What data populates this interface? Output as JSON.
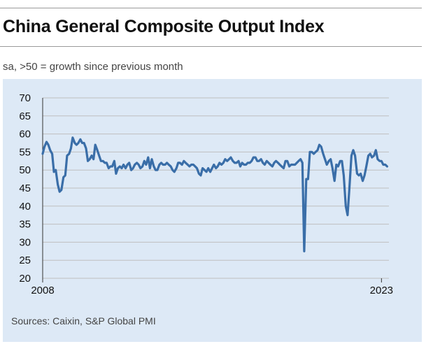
{
  "header": {
    "title": "China General Composite Output Index",
    "subtitle": "sa, >50 = growth since previous month"
  },
  "footer": {
    "source": "Sources: Caixin, S&P Global PMI"
  },
  "colors": {
    "background_panel": "#dde9f6",
    "line": "#3a6ea8",
    "gridline": "#bfbfbf"
  },
  "chart_data": {
    "type": "line",
    "title": "China General Composite Output Index",
    "subtitle": "sa, >50 = growth since previous month",
    "xlabel": "",
    "ylabel": "",
    "ylim": [
      20,
      70
    ],
    "yticks": [
      20,
      25,
      30,
      35,
      40,
      45,
      50,
      55,
      60,
      65,
      70
    ],
    "xlim": [
      2008.0,
      2023.33
    ],
    "xtick_labels": [
      "2008",
      "2023"
    ],
    "xtick_values": [
      2008,
      2023
    ],
    "grid": true,
    "legend": "none",
    "series": [
      {
        "x": [
          2008.0,
          2008.08,
          2008.17,
          2008.25,
          2008.33,
          2008.42,
          2008.5,
          2008.58,
          2008.67,
          2008.75,
          2008.83,
          2008.92,
          2009.0,
          2009.08,
          2009.17,
          2009.25,
          2009.33,
          2009.42,
          2009.5,
          2009.58,
          2009.67,
          2009.75,
          2009.83,
          2009.92,
          2010.0,
          2010.08,
          2010.17,
          2010.25,
          2010.33,
          2010.42,
          2010.5,
          2010.58,
          2010.67,
          2010.75,
          2010.83,
          2010.92,
          2011.0,
          2011.08,
          2011.17,
          2011.25,
          2011.33,
          2011.42,
          2011.5,
          2011.58,
          2011.67,
          2011.75,
          2011.83,
          2011.92,
          2012.0,
          2012.08,
          2012.17,
          2012.25,
          2012.33,
          2012.42,
          2012.5,
          2012.58,
          2012.67,
          2012.75,
          2012.83,
          2012.92,
          2013.0,
          2013.08,
          2013.17,
          2013.25,
          2013.33,
          2013.42,
          2013.5,
          2013.58,
          2013.67,
          2013.75,
          2013.83,
          2013.92,
          2014.0,
          2014.08,
          2014.17,
          2014.25,
          2014.33,
          2014.42,
          2014.5,
          2014.58,
          2014.67,
          2014.75,
          2014.83,
          2014.92,
          2015.0,
          2015.08,
          2015.17,
          2015.25,
          2015.33,
          2015.42,
          2015.5,
          2015.58,
          2015.67,
          2015.75,
          2015.83,
          2015.92,
          2016.0,
          2016.08,
          2016.17,
          2016.25,
          2016.33,
          2016.42,
          2016.5,
          2016.58,
          2016.67,
          2016.75,
          2016.83,
          2016.92,
          2017.0,
          2017.08,
          2017.17,
          2017.25,
          2017.33,
          2017.42,
          2017.5,
          2017.58,
          2017.67,
          2017.75,
          2017.83,
          2017.92,
          2018.0,
          2018.08,
          2018.17,
          2018.25,
          2018.33,
          2018.42,
          2018.5,
          2018.58,
          2018.67,
          2018.75,
          2018.83,
          2018.92,
          2019.0,
          2019.08,
          2019.17,
          2019.25,
          2019.33,
          2019.42,
          2019.5,
          2019.58,
          2019.67,
          2019.75,
          2019.83,
          2019.92,
          2020.0,
          2020.08,
          2020.17,
          2020.25,
          2020.33,
          2020.42,
          2020.5,
          2020.58,
          2020.67,
          2020.75,
          2020.83,
          2020.92,
          2021.0,
          2021.08,
          2021.17,
          2021.25,
          2021.33,
          2021.42,
          2021.5,
          2021.58,
          2021.67,
          2021.75,
          2021.83,
          2021.92,
          2022.0,
          2022.08,
          2022.17,
          2022.25,
          2022.33,
          2022.42,
          2022.5,
          2022.58,
          2022.67,
          2022.75,
          2022.83,
          2022.92,
          2023.0,
          2023.08,
          2023.17,
          2023.25
        ],
        "y": [
          54.5,
          56.5,
          57.8,
          57.0,
          55.5,
          54.5,
          49.5,
          50.0,
          46.0,
          44.0,
          44.5,
          48.0,
          48.5,
          54.0,
          54.5,
          56.0,
          59.0,
          57.5,
          57.0,
          57.5,
          58.5,
          57.5,
          57.5,
          56.0,
          52.5,
          53.0,
          54.0,
          53.0,
          57.0,
          55.5,
          54.0,
          52.5,
          52.5,
          52.0,
          52.0,
          50.5,
          51.0,
          51.0,
          52.5,
          49.0,
          50.5,
          51.0,
          50.5,
          51.5,
          50.5,
          51.5,
          52.0,
          50.0,
          50.5,
          51.5,
          52.0,
          51.5,
          50.5,
          51.0,
          52.5,
          51.5,
          53.5,
          50.5,
          53.0,
          51.0,
          50.0,
          50.0,
          51.5,
          52.0,
          51.5,
          51.5,
          52.0,
          51.5,
          51.0,
          50.0,
          49.5,
          50.5,
          52.0,
          52.0,
          51.5,
          52.5,
          52.0,
          51.5,
          51.0,
          51.5,
          51.5,
          51.0,
          50.5,
          49.0,
          48.5,
          50.5,
          50.0,
          49.5,
          50.5,
          49.5,
          50.5,
          51.5,
          50.5,
          51.0,
          52.0,
          51.5,
          52.0,
          53.0,
          52.5,
          53.0,
          53.5,
          52.5,
          52.0,
          52.0,
          52.5,
          51.0,
          52.0,
          51.5,
          51.5,
          52.0,
          52.0,
          52.5,
          53.5,
          53.5,
          52.5,
          52.5,
          53.0,
          52.0,
          51.5,
          52.5,
          52.0,
          51.5,
          51.0,
          52.0,
          52.5,
          52.0,
          51.5,
          51.0,
          50.5,
          52.5,
          52.5,
          51.0,
          51.5,
          51.5,
          51.5,
          52.0,
          52.5,
          53.0,
          52.0,
          27.5,
          47.5,
          47.5,
          55.0,
          55.0,
          54.5,
          55.0,
          55.5,
          57.0,
          56.5,
          54.5,
          53.0,
          51.5,
          52.5,
          53.0,
          50.5,
          47.0,
          51.5,
          51.0,
          52.5,
          52.5,
          48.5,
          40.0,
          37.5,
          45.0,
          54.0,
          55.5,
          54.0,
          49.0,
          48.5,
          49.0,
          47.0,
          48.5,
          51.0,
          54.0,
          54.5,
          53.5,
          54.0,
          55.5,
          53.0,
          52.5,
          52.5,
          51.5,
          51.5,
          51.0
        ],
        "note_unused": ""
      }
    ]
  }
}
